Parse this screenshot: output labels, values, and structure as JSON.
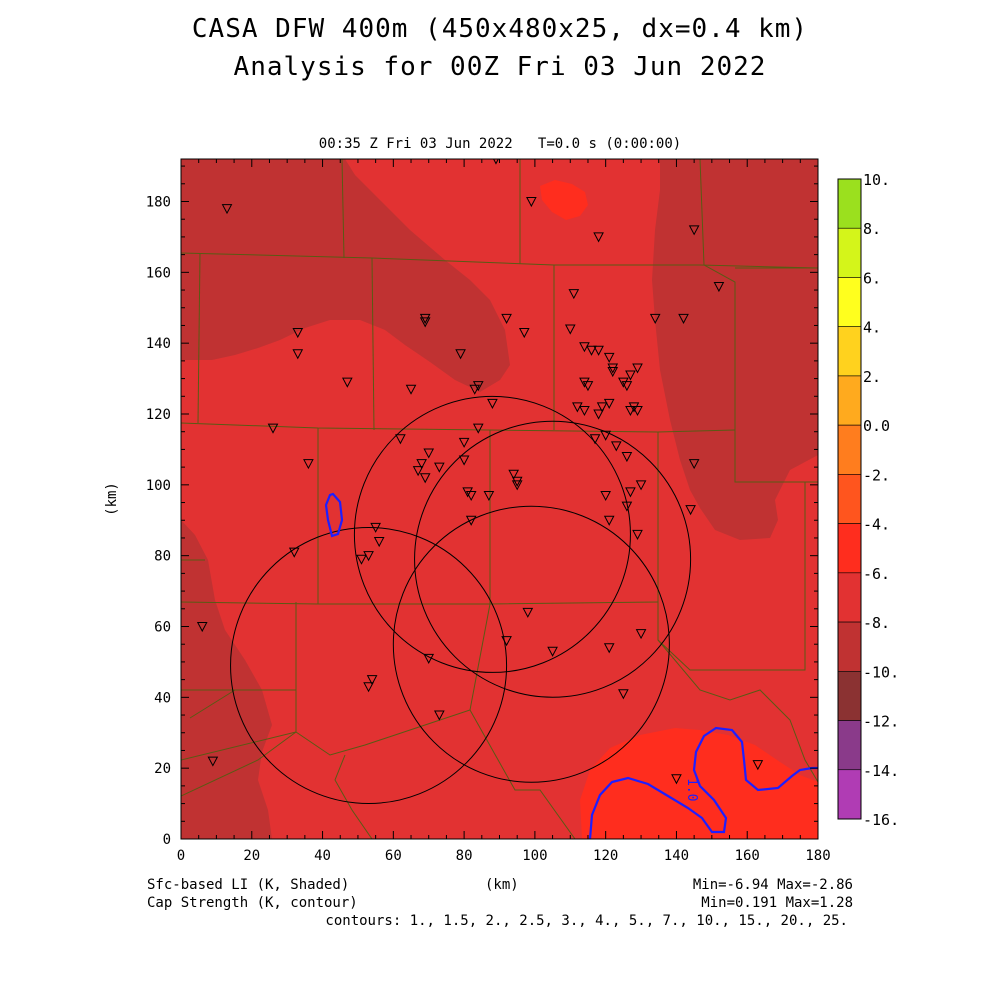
{
  "title_line1": "CASA DFW 400m (450x480x25, dx=0.4 km)",
  "title_line2": "Analysis for 00Z Fri 03 Jun 2022",
  "subtitle": "00:35 Z Fri 03 Jun 2022   T=0.0 s (0:00:00)",
  "x_axis": {
    "label": "(km)",
    "ticks": [
      "0",
      "20",
      "40",
      "60",
      "80",
      "100",
      "120",
      "140",
      "160",
      "180"
    ],
    "range": [
      0,
      180
    ]
  },
  "y_axis": {
    "label": "(km)",
    "ticks": [
      "0",
      "20",
      "40",
      "60",
      "80",
      "100",
      "120",
      "140",
      "160",
      "180"
    ],
    "range": [
      0,
      192
    ]
  },
  "colorbar": {
    "labels": [
      "10.",
      "8.",
      "6.",
      "4.",
      "2.",
      "0.0",
      "-2.",
      "-4.",
      "-6.",
      "-8.",
      "-10.",
      "-12.",
      "-14.",
      "-16."
    ],
    "colors": [
      "#9be01e",
      "#d4f51a",
      "#ffff1e",
      "#ffd21e",
      "#ffaa1e",
      "#ff7d1e",
      "#ff551e",
      "#ff2d1e",
      "#e23232",
      "#c03232",
      "#8b3232",
      "#8a3a8a",
      "#b03cb4",
      "#d23cdc"
    ]
  },
  "footer": {
    "left1": "Sfc-based LI (K, Shaded)",
    "left2": "Cap Strength (K, contour)",
    "mid": "(km)",
    "right1": "Min=-6.94 Max=-2.86",
    "right2": "Min=0.191 Max=1.28",
    "contours": "contours: 1., 1.5, 2., 2.5, 3., 4., 5., 7., 10., 15., 20., 25."
  },
  "contour_label": "1.0",
  "colors": {
    "field_main": "#e23232",
    "field_dark": "#c03232",
    "field_bright": "#ff2d1e",
    "county_lines": "#5a5a14",
    "contour": "#1e1eff"
  },
  "map": {
    "radar_circles": [
      {
        "cx": 88,
        "cy": 86
      },
      {
        "cx": 105,
        "cy": 79
      },
      {
        "cx": 99,
        "cy": 55
      },
      {
        "cx": 53,
        "cy": 49
      }
    ],
    "radar_radius_km": 39,
    "stations": [
      [
        0,
        0
      ],
      [
        -10,
        0
      ],
      [
        10,
        0
      ],
      [
        0,
        -10
      ],
      [
        0,
        10
      ]
    ],
    "station_points": [
      [
        13,
        178
      ],
      [
        89,
        192
      ],
      [
        99,
        180
      ],
      [
        118,
        170
      ],
      [
        145,
        172
      ],
      [
        152,
        156
      ],
      [
        111,
        154
      ],
      [
        69,
        146
      ],
      [
        69,
        147
      ],
      [
        33,
        143
      ],
      [
        33,
        137
      ],
      [
        79,
        137
      ],
      [
        47,
        129
      ],
      [
        92,
        147
      ],
      [
        97,
        143
      ],
      [
        110,
        144
      ],
      [
        114,
        139
      ],
      [
        116,
        138
      ],
      [
        118,
        138
      ],
      [
        121,
        136
      ],
      [
        122,
        133
      ],
      [
        122,
        132
      ],
      [
        125,
        129
      ],
      [
        127,
        131
      ],
      [
        129,
        133
      ],
      [
        114,
        129
      ],
      [
        115,
        128
      ],
      [
        126,
        128
      ],
      [
        134,
        147
      ],
      [
        142,
        147
      ],
      [
        65,
        127
      ],
      [
        84,
        128
      ],
      [
        83,
        127
      ],
      [
        88,
        123
      ],
      [
        112,
        122
      ],
      [
        114,
        121
      ],
      [
        118,
        120
      ],
      [
        119,
        122
      ],
      [
        121,
        123
      ],
      [
        127,
        121
      ],
      [
        129,
        121
      ],
      [
        128,
        122
      ],
      [
        26,
        116
      ],
      [
        62,
        113
      ],
      [
        84,
        116
      ],
      [
        80,
        112
      ],
      [
        117,
        113
      ],
      [
        120,
        114
      ],
      [
        123,
        111
      ],
      [
        126,
        108
      ],
      [
        145,
        106
      ],
      [
        36,
        106
      ],
      [
        68,
        106
      ],
      [
        70,
        109
      ],
      [
        73,
        105
      ],
      [
        67,
        104
      ],
      [
        69,
        102
      ],
      [
        80,
        107
      ],
      [
        94,
        103
      ],
      [
        95,
        101
      ],
      [
        95,
        100
      ],
      [
        81,
        98
      ],
      [
        82,
        97
      ],
      [
        87,
        97
      ],
      [
        120,
        97
      ],
      [
        127,
        98
      ],
      [
        130,
        100
      ],
      [
        126,
        94
      ],
      [
        121,
        90
      ],
      [
        129,
        86
      ],
      [
        144,
        93
      ],
      [
        82,
        90
      ],
      [
        55,
        88
      ],
      [
        56,
        84
      ],
      [
        53,
        80
      ],
      [
        51,
        79
      ],
      [
        32,
        81
      ],
      [
        6,
        60
      ],
      [
        98,
        64
      ],
      [
        92,
        56
      ],
      [
        105,
        53
      ],
      [
        121,
        54
      ],
      [
        130,
        58
      ],
      [
        70,
        51
      ],
      [
        54,
        45
      ],
      [
        53,
        43
      ],
      [
        73,
        35
      ],
      [
        125,
        41
      ],
      [
        9,
        22
      ],
      [
        140,
        17
      ],
      [
        163,
        21
      ]
    ]
  }
}
